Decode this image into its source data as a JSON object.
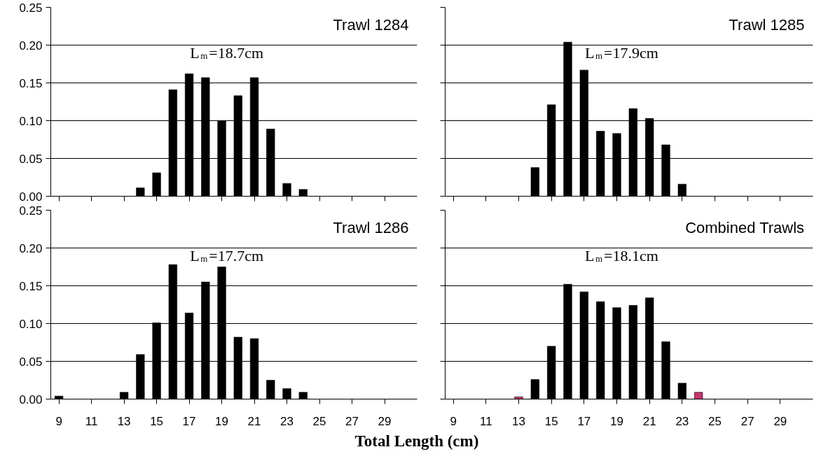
{
  "chart_data": [
    {
      "type": "bar",
      "title": "Trawl 1284",
      "annotations": [
        "L$_{m}$=18.7cm"
      ],
      "x": [
        14,
        15,
        16,
        17,
        18,
        19,
        20,
        21,
        22,
        23,
        24
      ],
      "values": [
        0.011,
        0.031,
        0.141,
        0.162,
        0.157,
        0.1,
        0.133,
        0.157,
        0.089,
        0.017,
        0.009
      ],
      "color": "#000000",
      "xlim": [
        8.5,
        31
      ],
      "xticks": [
        9,
        11,
        13,
        15,
        17,
        19,
        21,
        23,
        25,
        27,
        29
      ],
      "ylim": [
        0,
        0.25
      ],
      "yticks": [
        {
          "value": 0,
          "label": "0.00"
        },
        {
          "value": 0.05,
          "label": "0.05"
        },
        {
          "value": 0.1,
          "label": "0.10"
        },
        {
          "value": 0.15,
          "label": "0.15"
        },
        {
          "value": 0.2,
          "label": "0.20"
        },
        {
          "value": 0.25,
          "label": "0.25"
        }
      ],
      "grid": "y",
      "tick_labels": "y"
    },
    {
      "type": "bar",
      "title": "Trawl 1285",
      "annotations": [
        "L$_{m}$=17.9cm"
      ],
      "x": [
        14,
        15,
        16,
        17,
        18,
        19,
        20,
        21,
        22,
        23
      ],
      "values": [
        0.038,
        0.121,
        0.204,
        0.167,
        0.086,
        0.083,
        0.116,
        0.103,
        0.068,
        0.016
      ],
      "color": "#000000",
      "xlim": [
        8.5,
        31
      ],
      "xticks": [
        9,
        11,
        13,
        15,
        17,
        19,
        21,
        23,
        25,
        27,
        29
      ],
      "ylim": [
        0,
        0.25
      ],
      "yticks": [
        {
          "value": 0,
          "label": null
        },
        {
          "value": 0.05,
          "label": null
        },
        {
          "value": 0.1,
          "label": null
        },
        {
          "value": 0.15,
          "label": null
        },
        {
          "value": 0.2,
          "label": null
        },
        {
          "value": 0.25,
          "label": null
        }
      ],
      "grid": "y",
      "tick_labels": false
    },
    {
      "type": "bar",
      "title": "Trawl 1286",
      "annotations": [
        "L$_{m}$=17.7cm"
      ],
      "xlabel": "Total Length (cm)",
      "x": [
        9,
        13,
        14,
        15,
        16,
        17,
        18,
        19,
        20,
        21,
        22,
        23,
        24
      ],
      "values": [
        0.004,
        0.009,
        0.059,
        0.101,
        0.178,
        0.114,
        0.155,
        0.175,
        0.082,
        0.08,
        0.025,
        0.014,
        0.009
      ],
      "color": "#000000",
      "xlim": [
        8.5,
        31
      ],
      "xticks": [
        9,
        11,
        13,
        15,
        17,
        19,
        21,
        23,
        25,
        27,
        29
      ],
      "ylim": [
        0,
        0.25
      ],
      "yticks": [
        {
          "value": 0,
          "label": "0.00"
        },
        {
          "value": 0.05,
          "label": "0.05"
        },
        {
          "value": 0.1,
          "label": "0.10"
        },
        {
          "value": 0.15,
          "label": "0.15"
        },
        {
          "value": 0.2,
          "label": "0.20"
        },
        {
          "value": 0.25,
          "label": "0.25"
        }
      ],
      "grid": "y"
    },
    {
      "type": "bar",
      "title": "Combined Trawls",
      "annotations": [
        "L$_{m}$=18.1cm"
      ],
      "x": [
        13,
        14,
        15,
        16,
        17,
        18,
        19,
        20,
        21,
        22,
        23,
        24
      ],
      "values": [
        0.003,
        0.026,
        0.07,
        0.152,
        0.142,
        0.129,
        0.121,
        0.124,
        0.134,
        0.076,
        0.021,
        0.009
      ],
      "colors": [
        "#c8326e",
        "#000000",
        "#000000",
        "#000000",
        "#000000",
        "#000000",
        "#000000",
        "#000000",
        "#000000",
        "#000000",
        "#000000",
        "#c8326e"
      ],
      "xlim": [
        8.5,
        31
      ],
      "xticks": [
        9,
        11,
        13,
        15,
        17,
        19,
        21,
        23,
        25,
        27,
        29
      ],
      "ylim": [
        0,
        0.25
      ],
      "yticks": [
        {
          "value": 0,
          "label": null
        },
        {
          "value": 0.05,
          "label": null
        },
        {
          "value": 0.1,
          "label": null
        },
        {
          "value": 0.15,
          "label": null
        },
        {
          "value": 0.2,
          "label": null
        },
        {
          "value": 0.25,
          "label": null
        }
      ],
      "grid": "y",
      "tick_labels": "x"
    }
  ]
}
